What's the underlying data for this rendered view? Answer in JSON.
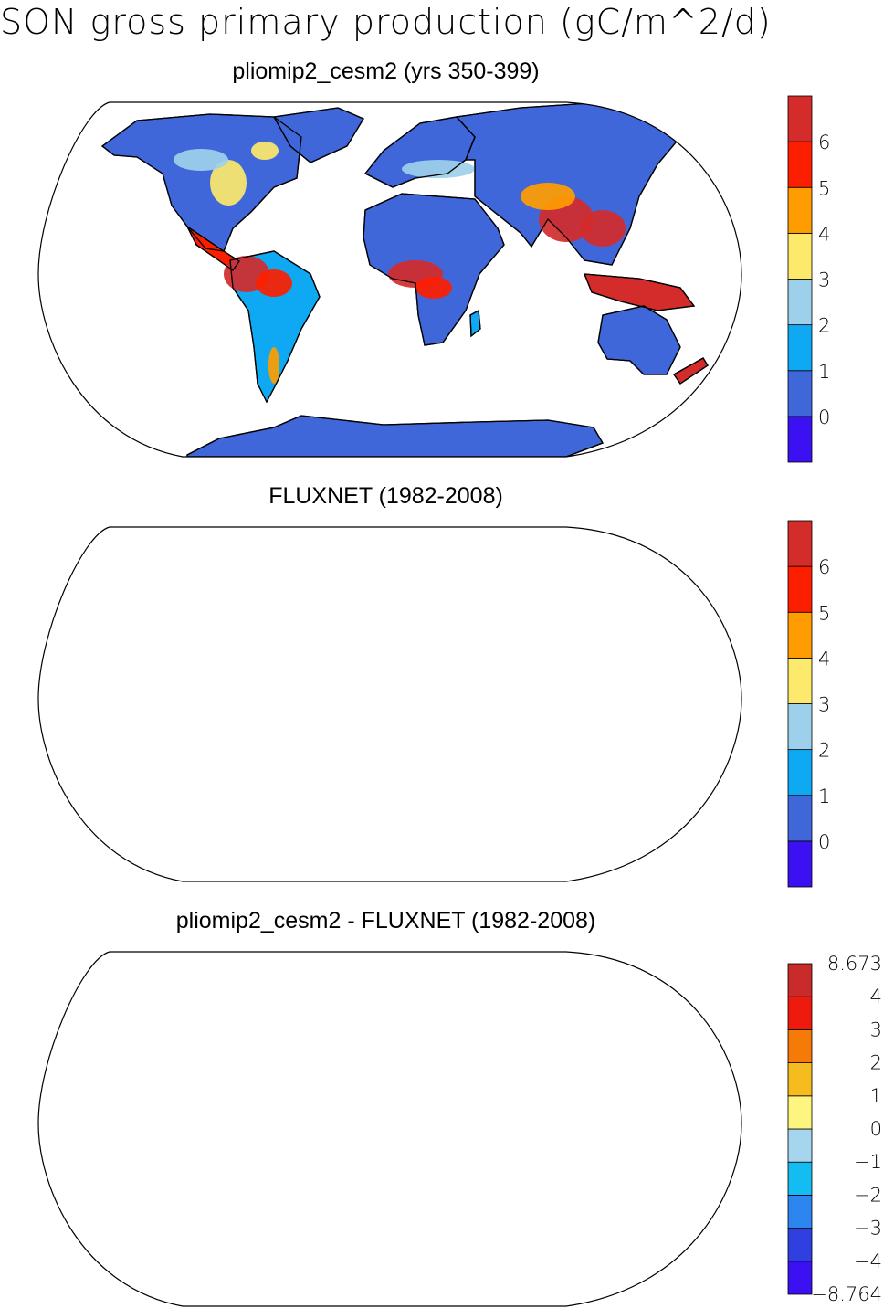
{
  "figure": {
    "title": "SON gross primary production (gC/m^2/d)"
  },
  "panels": [
    {
      "title": "pliomip2_cesm2 (yrs 350-399)",
      "colorbar": {
        "colors": [
          "#3b10f2",
          "#3f67da",
          "#0ea9f2",
          "#9dd0ea",
          "#fde96b",
          "#ff9d00",
          "#fd1e00",
          "#d42b2b"
        ],
        "labels": [
          "0",
          "1",
          "2",
          "3",
          "4",
          "5",
          "6"
        ]
      }
    },
    {
      "title": "FLUXNET (1982-2008)",
      "colorbar": {
        "colors": [
          "#3b10f2",
          "#3f67da",
          "#0ea9f2",
          "#9dd0ea",
          "#fde96b",
          "#ff9d00",
          "#fd1e00",
          "#d42b2b"
        ],
        "labels": [
          "0",
          "1",
          "2",
          "3",
          "4",
          "5",
          "6"
        ]
      }
    },
    {
      "title": "pliomip2_cesm2 - FLUXNET (1982-2008)",
      "colorbar": {
        "colors": [
          "#3b10f2",
          "#2f3fe0",
          "#2d86f0",
          "#13bdf2",
          "#a6d6ee",
          "#fdf57f",
          "#f6bb1f",
          "#f57a08",
          "#ef1a0e",
          "#c92a2a"
        ],
        "labels": [
          "8.673",
          "4",
          "3",
          "2",
          "1",
          "0",
          "−1",
          "−2",
          "−3",
          "−4",
          "−8.764"
        ]
      }
    }
  ]
}
